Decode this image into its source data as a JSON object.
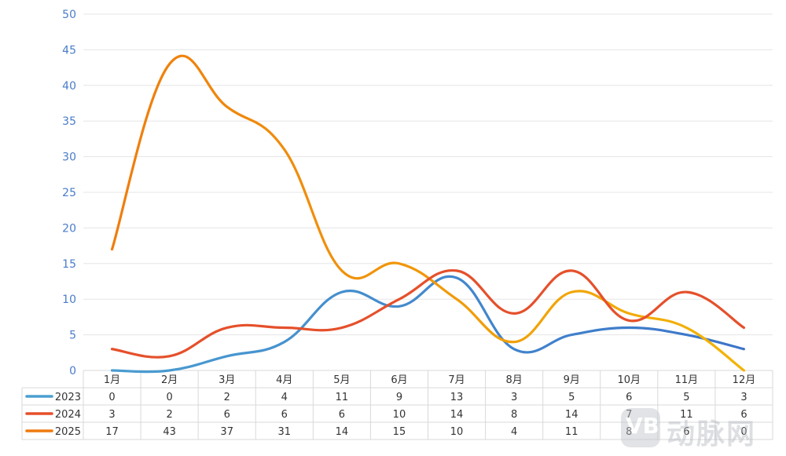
{
  "chart_data": {
    "type": "line",
    "categories": [
      "1月",
      "2月",
      "3月",
      "4月",
      "5月",
      "6月",
      "7月",
      "8月",
      "9月",
      "10月",
      "11月",
      "12月"
    ],
    "ylim": [
      0,
      50
    ],
    "yticks": [
      0,
      5,
      10,
      15,
      20,
      25,
      30,
      35,
      40,
      45,
      50
    ],
    "grid": true,
    "data_table": true,
    "series": [
      {
        "name": "2023",
        "color": "#4b9fd1",
        "values": [
          0,
          0,
          2,
          4,
          11,
          9,
          13,
          3,
          5,
          6,
          5,
          3
        ]
      },
      {
        "name": "2024",
        "color": "#e5502b",
        "values": [
          3,
          2,
          6,
          6,
          6,
          10,
          14,
          8,
          14,
          7,
          11,
          6
        ]
      },
      {
        "name": "2025",
        "color": "#ef7a0e",
        "values": [
          17,
          43,
          37,
          31,
          14,
          15,
          10,
          4,
          11,
          8,
          6,
          0
        ]
      }
    ],
    "colors": {
      "axis_text": "#4a7cc9",
      "grid": "#e5e5e5",
      "table_text": "#333333",
      "table_border": "#d9d9d9",
      "series_2025_end": "#f2b705",
      "series_2023_end": "#3b73c9"
    }
  },
  "watermark": {
    "text": "动脉网",
    "logo_icon": "vb-logo-icon",
    "logo_text": "VB"
  }
}
